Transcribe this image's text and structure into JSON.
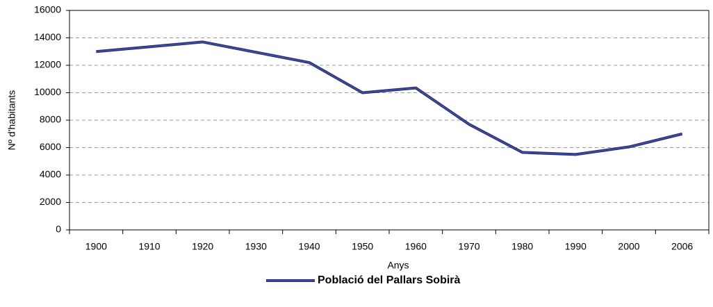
{
  "chart_data": {
    "type": "line",
    "x_label": "Anys",
    "y_label": "Nº d'habitants",
    "categories": [
      "1900",
      "1910",
      "1920",
      "1930",
      "1940",
      "1950",
      "1960",
      "1970",
      "1980",
      "1990",
      "2000",
      "2006"
    ],
    "series": [
      {
        "name": "Població del Pallars Sobirà",
        "color": "#262f7c",
        "values": [
          13000,
          13350,
          13700,
          12950,
          12200,
          10000,
          10350,
          7700,
          5650,
          5500,
          6050,
          7000
        ]
      }
    ],
    "ylim": [
      0,
      16000
    ],
    "yticks": [
      0,
      2000,
      4000,
      6000,
      8000,
      10000,
      12000,
      14000,
      16000
    ],
    "grid": true,
    "legend": "bottom"
  }
}
